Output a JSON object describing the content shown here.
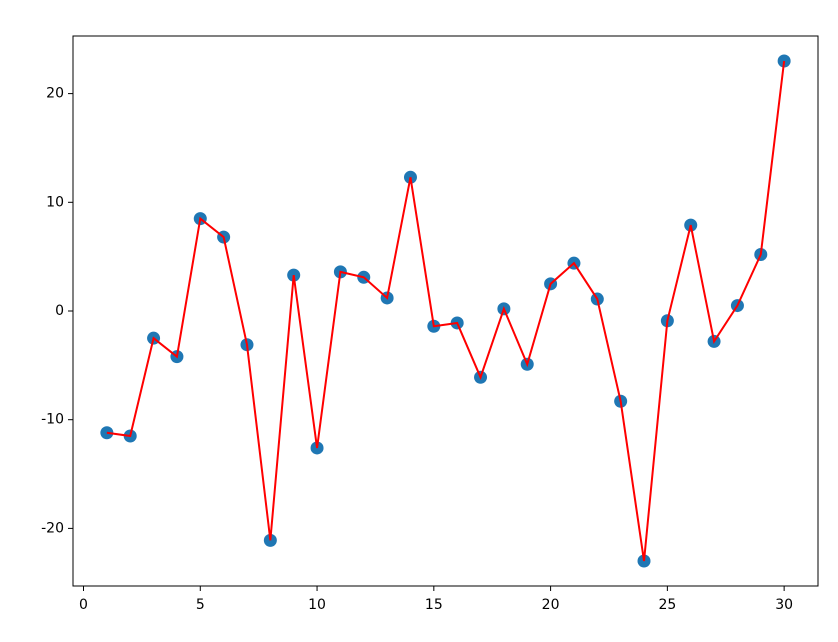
{
  "chart_data": {
    "type": "line",
    "x": [
      1,
      2,
      3,
      4,
      5,
      6,
      7,
      8,
      9,
      10,
      11,
      12,
      13,
      14,
      15,
      16,
      17,
      18,
      19,
      20,
      21,
      22,
      23,
      24,
      25,
      26,
      27,
      28,
      29,
      30
    ],
    "values": [
      -11.2,
      -11.5,
      -2.5,
      -4.2,
      8.5,
      6.8,
      -3.1,
      -21.1,
      3.3,
      -12.6,
      3.6,
      3.1,
      1.2,
      12.3,
      -1.4,
      -1.1,
      -6.1,
      0.2,
      -4.9,
      2.5,
      4.4,
      1.1,
      -8.3,
      -23.0,
      -0.9,
      7.9,
      -2.8,
      0.5,
      5.2,
      23.0
    ],
    "color": "#ff0000",
    "marker_color": "#1f77b4",
    "xlim": [
      -0.45,
      31.45
    ],
    "xticks": [
      0,
      5,
      10,
      15,
      20,
      25,
      30
    ],
    "ylim": [
      -25.3,
      25.3
    ],
    "yticks": [
      -20,
      -10,
      0,
      10,
      20
    ],
    "grid": false
  }
}
